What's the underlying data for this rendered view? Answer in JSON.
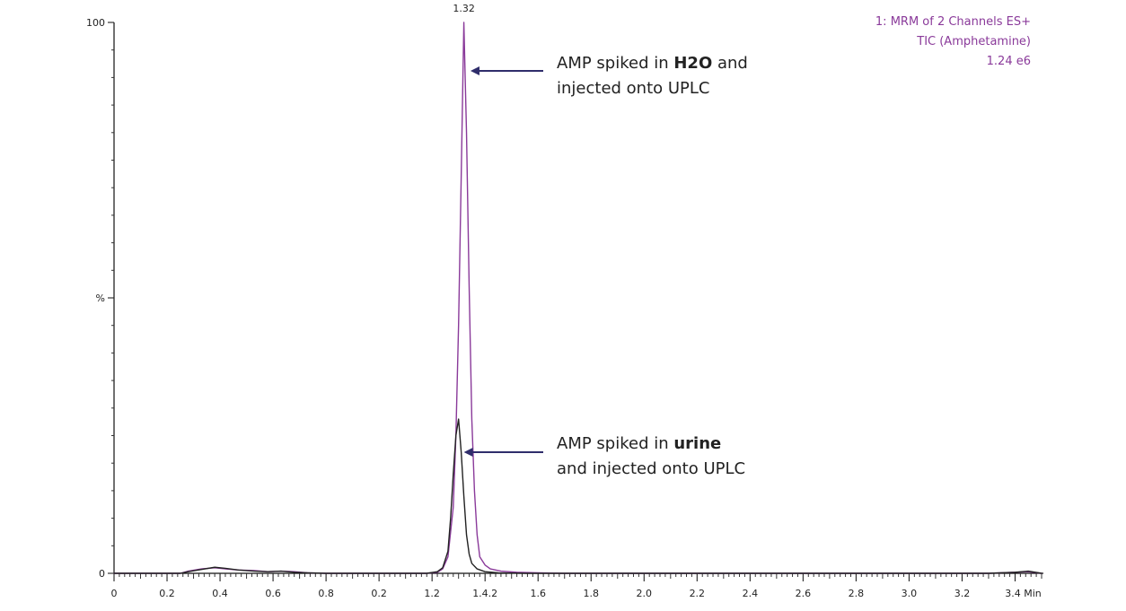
{
  "chart_data": {
    "type": "line",
    "title": "",
    "xlabel": "",
    "ylabel": "%",
    "x_unit": "Min",
    "ylim": [
      0,
      100
    ],
    "xlim": [
      0,
      3.5
    ],
    "grid": false,
    "y_tick_labels": [
      "100",
      "%",
      "0"
    ],
    "x_tick_labels": [
      "0",
      "0.2",
      "0.4",
      "0.6",
      "0.8",
      "0.2",
      "1.2",
      "1.4.2",
      "1.6",
      "1.8",
      "2.0",
      "2.2",
      "2.4",
      "2.6",
      "2.8",
      "3.0",
      "3.2",
      "3.4 Min"
    ],
    "peak_label": "1.32",
    "series": [
      {
        "color": "#8a3a9a",
        "points": [
          [
            0.0,
            0.0
          ],
          [
            0.05,
            0.0
          ],
          [
            0.1,
            0.0
          ],
          [
            0.15,
            0.0
          ],
          [
            0.2,
            0.0
          ],
          [
            0.25,
            0.0
          ],
          [
            0.28,
            0.4
          ],
          [
            0.33,
            0.8
          ],
          [
            0.38,
            1.0
          ],
          [
            0.42,
            0.8
          ],
          [
            0.47,
            0.6
          ],
          [
            0.53,
            0.5
          ],
          [
            0.58,
            0.3
          ],
          [
            0.63,
            0.4
          ],
          [
            0.68,
            0.3
          ],
          [
            0.73,
            0.1
          ],
          [
            0.8,
            0.0
          ],
          [
            0.9,
            0.0
          ],
          [
            1.0,
            0.0
          ],
          [
            1.1,
            0.0
          ],
          [
            1.18,
            0.0
          ],
          [
            1.22,
            0.2
          ],
          [
            1.24,
            0.8
          ],
          [
            1.26,
            3.0
          ],
          [
            1.28,
            12.0
          ],
          [
            1.29,
            25.0
          ],
          [
            1.3,
            45.0
          ],
          [
            1.31,
            72.0
          ],
          [
            1.32,
            100.0
          ],
          [
            1.33,
            80.0
          ],
          [
            1.34,
            52.0
          ],
          [
            1.35,
            28.0
          ],
          [
            1.36,
            15.0
          ],
          [
            1.37,
            7.0
          ],
          [
            1.38,
            3.0
          ],
          [
            1.4,
            1.5
          ],
          [
            1.42,
            0.8
          ],
          [
            1.46,
            0.4
          ],
          [
            1.52,
            0.2
          ],
          [
            1.6,
            0.1
          ],
          [
            1.7,
            0.0
          ],
          [
            1.9,
            0.0
          ],
          [
            2.1,
            0.0
          ],
          [
            2.3,
            0.0
          ],
          [
            2.5,
            0.0
          ],
          [
            2.7,
            0.0
          ],
          [
            2.9,
            0.0
          ],
          [
            3.1,
            0.0
          ],
          [
            3.3,
            0.0
          ],
          [
            3.4,
            0.2
          ],
          [
            3.45,
            0.3
          ],
          [
            3.5,
            0.0
          ]
        ]
      },
      {
        "color": "#222222",
        "points": [
          [
            0.0,
            0.0
          ],
          [
            0.05,
            0.0
          ],
          [
            0.1,
            0.0
          ],
          [
            0.15,
            0.0
          ],
          [
            0.2,
            0.0
          ],
          [
            0.25,
            0.0
          ],
          [
            0.28,
            0.3
          ],
          [
            0.33,
            0.7
          ],
          [
            0.38,
            1.1
          ],
          [
            0.42,
            0.9
          ],
          [
            0.47,
            0.6
          ],
          [
            0.53,
            0.4
          ],
          [
            0.58,
            0.3
          ],
          [
            0.63,
            0.4
          ],
          [
            0.68,
            0.2
          ],
          [
            0.73,
            0.1
          ],
          [
            0.8,
            0.0
          ],
          [
            0.9,
            0.0
          ],
          [
            1.0,
            0.0
          ],
          [
            1.1,
            0.0
          ],
          [
            1.18,
            0.0
          ],
          [
            1.22,
            0.3
          ],
          [
            1.24,
            1.0
          ],
          [
            1.26,
            4.0
          ],
          [
            1.27,
            10.0
          ],
          [
            1.28,
            18.0
          ],
          [
            1.29,
            25.0
          ],
          [
            1.3,
            28.0
          ],
          [
            1.31,
            22.0
          ],
          [
            1.32,
            14.0
          ],
          [
            1.33,
            7.0
          ],
          [
            1.34,
            3.5
          ],
          [
            1.35,
            1.8
          ],
          [
            1.37,
            0.8
          ],
          [
            1.4,
            0.3
          ],
          [
            1.45,
            0.1
          ],
          [
            1.55,
            0.0
          ],
          [
            1.7,
            0.0
          ],
          [
            1.9,
            0.0
          ],
          [
            2.1,
            0.0
          ],
          [
            2.3,
            0.0
          ],
          [
            2.5,
            0.0
          ],
          [
            2.7,
            0.0
          ],
          [
            2.9,
            0.0
          ],
          [
            3.1,
            0.0
          ],
          [
            3.3,
            0.0
          ],
          [
            3.4,
            0.2
          ],
          [
            3.45,
            0.4
          ],
          [
            3.5,
            0.0
          ]
        ]
      }
    ],
    "annotations": [
      {
        "lines": [
          [
            {
              "text": "AMP spiked in ",
              "bold": false
            },
            {
              "text": "H2O",
              "bold": true
            },
            {
              "text": " and",
              "bold": false
            }
          ],
          [
            {
              "text": "injected onto UPLC",
              "bold": false
            }
          ]
        ],
        "arrow_to": [
          1.345,
          91
        ]
      },
      {
        "lines": [
          [
            {
              "text": "AMP spiked in ",
              "bold": false
            },
            {
              "text": "urine",
              "bold": true
            }
          ],
          [
            {
              "text": "and injected onto UPLC",
              "bold": false
            }
          ]
        ],
        "arrow_to": [
          1.32,
          22
        ]
      }
    ],
    "legend": {
      "position": "top-right",
      "color": "#8a3a9a",
      "lines": [
        "1: MRM of 2 Channels ES+",
        "TIC (Amphetamine)",
        "1.24 e6"
      ]
    }
  }
}
